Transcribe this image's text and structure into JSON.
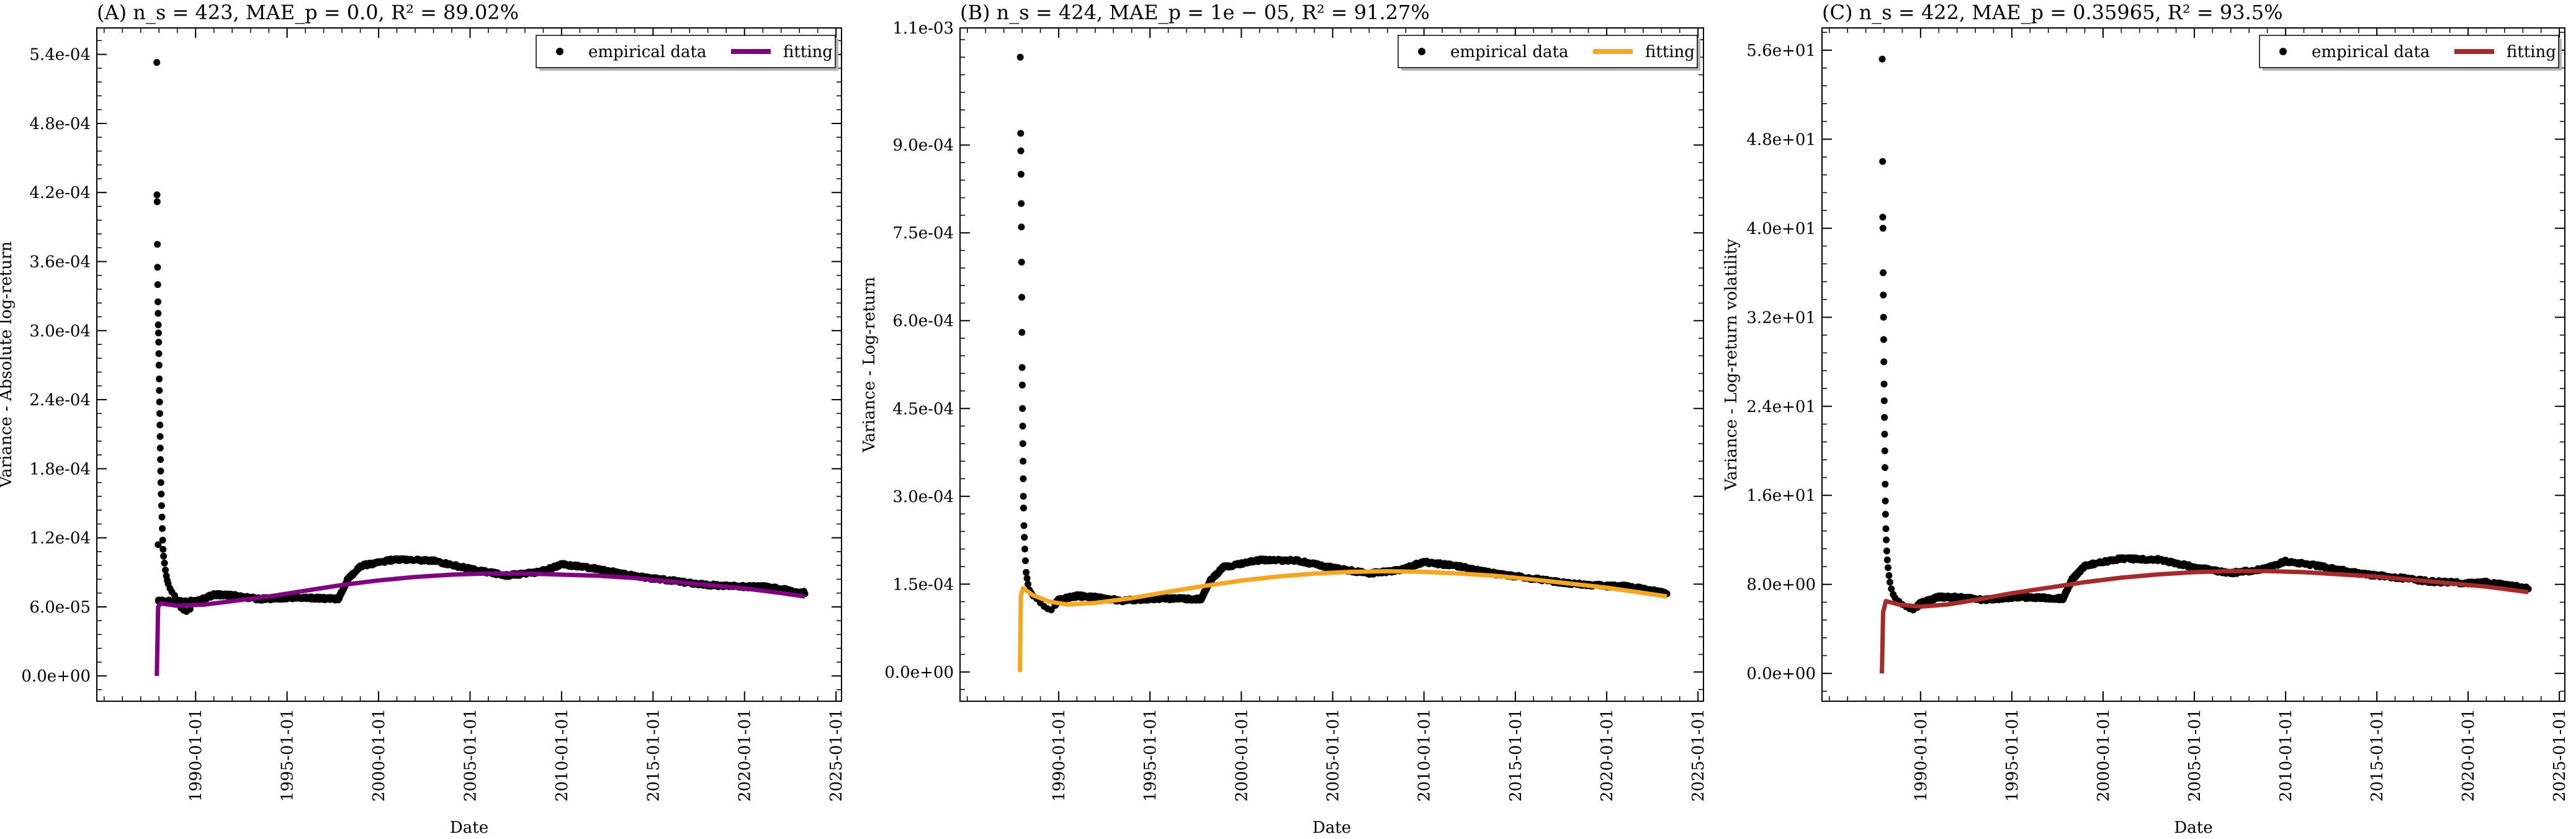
{
  "chart_data": [
    {
      "type": "scatter",
      "title": "(A) n_s = 423,  MAE_p = 0.0,  R² = 89.02%",
      "xlabel": "Date",
      "ylabel": "Variance - Absolute log-return",
      "xlim": [
        1984.6,
        2025.3
      ],
      "ylim": [
        -2.2e-05,
        0.000563
      ],
      "x_ticks": [
        "1990-01-01",
        "1995-01-01",
        "2000-01-01",
        "2005-01-01",
        "2010-01-01",
        "2015-01-01",
        "2020-01-01",
        "2025-01-01"
      ],
      "y_ticks": [
        {
          "v": 0,
          "label": "0.0e+00"
        },
        {
          "v": 6e-05,
          "label": "6.0e-05"
        },
        {
          "v": 0.00012,
          "label": "1.2e-04"
        },
        {
          "v": 0.00018,
          "label": "1.8e-04"
        },
        {
          "v": 0.00024,
          "label": "2.4e-04"
        },
        {
          "v": 0.0003,
          "label": "3.0e-04"
        },
        {
          "v": 0.00036,
          "label": "3.6e-04"
        },
        {
          "v": 0.00042,
          "label": "4.2e-04"
        },
        {
          "v": 0.00048,
          "label": "4.8e-04"
        },
        {
          "v": 0.00054,
          "label": "5.4e-04"
        }
      ],
      "fit_color": "#800080",
      "legend": {
        "points": "empirical data",
        "line": "fitting",
        "position": "top-right"
      },
      "series": [
        {
          "name": "empirical data",
          "points": [
            [
              1987.88,
              0.000533
            ],
            [
              1987.89,
              0.000418
            ],
            [
              1987.9,
              0.000412
            ],
            [
              1987.91,
              0.000375
            ],
            [
              1987.92,
              0.000355
            ],
            [
              1987.93,
              0.00034
            ],
            [
              1987.94,
              0.000325
            ],
            [
              1987.95,
              0.000315
            ],
            [
              1987.96,
              0.000305
            ],
            [
              1987.97,
              0.000298
            ],
            [
              1987.98,
              0.00029
            ],
            [
              1987.99,
              0.00028
            ],
            [
              1988.0,
              0.00027
            ],
            [
              1988.01,
              0.000258
            ],
            [
              1988.02,
              0.000248
            ],
            [
              1988.03,
              0.000238
            ],
            [
              1988.04,
              0.000228
            ],
            [
              1988.05,
              0.000218
            ],
            [
              1988.06,
              0.000208
            ],
            [
              1988.07,
              0.000198
            ],
            [
              1988.08,
              0.000188
            ],
            [
              1988.09,
              0.000178
            ],
            [
              1988.1,
              0.000168
            ],
            [
              1988.12,
              0.000158
            ],
            [
              1988.14,
              0.000148
            ],
            [
              1988.16,
              0.000138
            ],
            [
              1988.18,
              0.000128
            ],
            [
              1988.2,
              0.000118
            ],
            [
              1988.22,
              0.00011
            ],
            [
              1988.25,
              0.000104
            ],
            [
              1988.3,
              9.8e-05
            ],
            [
              1988.35,
              9.2e-05
            ],
            [
              1988.4,
              8.7e-05
            ],
            [
              1988.45,
              8.3e-05
            ],
            [
              1988.5,
              8e-05
            ],
            [
              1988.6,
              7.6e-05
            ],
            [
              1988.7,
              7.3e-05
            ],
            [
              1988.85,
              7e-05
            ],
            [
              1989.0,
              6.6e-05
            ],
            [
              1989.1,
              6.2e-05
            ],
            [
              1989.2,
              5.9e-05
            ],
            [
              1989.35,
              5.7e-05
            ],
            [
              1989.5,
              5.6e-05
            ],
            [
              1989.7,
              5.8e-05
            ],
            [
              1987.95,
              0.000114
            ],
            [
              1987.97,
              6.5e-05
            ]
          ]
        },
        {
          "name": "fitting",
          "points": [
            [
              1987.88,
              0.0
            ],
            [
              1987.95,
              6e-05
            ],
            [
              1988.1,
              6.3e-05
            ],
            [
              1989.0,
              6.1e-05
            ],
            [
              1990.5,
              6.2e-05
            ],
            [
              1992.0,
              6.5e-05
            ],
            [
              1994.0,
              6.9e-05
            ],
            [
              1996.0,
              7.4e-05
            ],
            [
              1998.0,
              7.9e-05
            ],
            [
              2000.0,
              8.3e-05
            ],
            [
              2002.0,
              8.6e-05
            ],
            [
              2004.0,
              8.8e-05
            ],
            [
              2006.0,
              8.9e-05
            ],
            [
              2008.0,
              8.9e-05
            ],
            [
              2010.0,
              8.8e-05
            ],
            [
              2012.0,
              8.7e-05
            ],
            [
              2014.0,
              8.5e-05
            ],
            [
              2016.0,
              8.2e-05
            ],
            [
              2018.0,
              7.9e-05
            ],
            [
              2020.0,
              7.6e-05
            ],
            [
              2022.0,
              7.2e-05
            ],
            [
              2023.3,
              6.9e-05
            ]
          ]
        }
      ]
    },
    {
      "type": "scatter",
      "title": "(B) n_s = 424,  MAE_p = 1e − 05,  R² = 91.27%",
      "xlabel": "Date",
      "ylabel": "Variance - Log-return",
      "xlim": [
        1984.6,
        2025.3
      ],
      "ylim": [
        -5e-05,
        0.0011
      ],
      "x_ticks": [
        "1990-01-01",
        "1995-01-01",
        "2000-01-01",
        "2005-01-01",
        "2010-01-01",
        "2015-01-01",
        "2020-01-01",
        "2025-01-01"
      ],
      "y_ticks": [
        {
          "v": 0,
          "label": "0.0e+00"
        },
        {
          "v": 0.00015,
          "label": "1.5e-04"
        },
        {
          "v": 0.0003,
          "label": "3.0e-04"
        },
        {
          "v": 0.00045,
          "label": "4.5e-04"
        },
        {
          "v": 0.0006,
          "label": "6.0e-04"
        },
        {
          "v": 0.00075,
          "label": "7.5e-04"
        },
        {
          "v": 0.0009,
          "label": "9.0e-04"
        },
        {
          "v": 0.0011,
          "label": "1.1e-03"
        }
      ],
      "fit_color": "#F5A623",
      "legend": {
        "points": "empirical data",
        "line": "fitting",
        "position": "top-right"
      },
      "series": [
        {
          "name": "empirical data",
          "points": [
            [
              1987.9,
              0.00105
            ],
            [
              1987.92,
              0.00092
            ],
            [
              1987.93,
              0.00089
            ],
            [
              1987.94,
              0.00085
            ],
            [
              1987.95,
              0.0008
            ],
            [
              1987.96,
              0.00076
            ],
            [
              1987.97,
              0.0007
            ],
            [
              1987.98,
              0.00064
            ],
            [
              1987.99,
              0.00058
            ],
            [
              1988.0,
              0.00052
            ],
            [
              1988.01,
              0.00049
            ],
            [
              1988.02,
              0.00045
            ],
            [
              1988.03,
              0.00042
            ],
            [
              1988.04,
              0.00039
            ],
            [
              1988.05,
              0.00036
            ],
            [
              1988.06,
              0.00033
            ],
            [
              1988.07,
              0.0003
            ],
            [
              1988.08,
              0.00028
            ],
            [
              1988.1,
              0.00025
            ],
            [
              1988.12,
              0.00023
            ],
            [
              1988.15,
              0.00021
            ],
            [
              1988.18,
              0.00019
            ],
            [
              1988.22,
              0.00017
            ],
            [
              1988.27,
              0.00016
            ],
            [
              1988.32,
              0.00015
            ],
            [
              1988.4,
              0.00014
            ],
            [
              1988.5,
              0.000135
            ],
            [
              1988.6,
              0.00013
            ],
            [
              1988.8,
              0.000125
            ],
            [
              1989.0,
              0.000118
            ],
            [
              1989.2,
              0.000112
            ],
            [
              1989.4,
              0.000108
            ],
            [
              1989.6,
              0.000106
            ],
            [
              1989.8,
              0.000115
            ]
          ]
        },
        {
          "name": "fitting",
          "points": [
            [
              1987.88,
              0.0
            ],
            [
              1987.93,
              0.00013
            ],
            [
              1988.05,
              0.000143
            ],
            [
              1988.6,
              0.000131
            ],
            [
              1989.5,
              0.00012
            ],
            [
              1990.5,
              0.000115
            ],
            [
              1992.0,
              0.000118
            ],
            [
              1994.0,
              0.000126
            ],
            [
              1996.0,
              0.000137
            ],
            [
              1998.0,
              0.000147
            ],
            [
              2000.0,
              0.000156
            ],
            [
              2002.0,
              0.000163
            ],
            [
              2004.0,
              0.000168
            ],
            [
              2006.0,
              0.000171
            ],
            [
              2008.0,
              0.000172
            ],
            [
              2010.0,
              0.000171
            ],
            [
              2012.0,
              0.000168
            ],
            [
              2014.0,
              0.000164
            ],
            [
              2016.0,
              0.000158
            ],
            [
              2018.0,
              0.000151
            ],
            [
              2020.0,
              0.000144
            ],
            [
              2022.0,
              0.000135
            ],
            [
              2023.3,
              0.000129
            ]
          ]
        }
      ]
    },
    {
      "type": "scatter",
      "title": "(C) n_s = 422,  MAE_p = 0.35965,  R² = 93.5%",
      "xlabel": "Date",
      "ylabel": "Variance - Log-return volatility",
      "xlim": [
        1984.6,
        2025.3
      ],
      "ylim": [
        -2.5,
        58.0
      ],
      "x_ticks": [
        "1990-01-01",
        "1995-01-01",
        "2000-01-01",
        "2005-01-01",
        "2010-01-01",
        "2015-01-01",
        "2020-01-01",
        "2025-01-01"
      ],
      "y_ticks": [
        {
          "v": 0,
          "label": "0.0e+00"
        },
        {
          "v": 8,
          "label": "8.0e+00"
        },
        {
          "v": 16,
          "label": "1.6e+01"
        },
        {
          "v": 24,
          "label": "2.4e+01"
        },
        {
          "v": 32,
          "label": "3.2e+01"
        },
        {
          "v": 40,
          "label": "4.0e+01"
        },
        {
          "v": 48,
          "label": "4.8e+01"
        },
        {
          "v": 56,
          "label": "5.6e+01"
        }
      ],
      "fit_color": "#A52A2A",
      "legend": {
        "points": "empirical data",
        "line": "fitting",
        "position": "top-right"
      },
      "series": [
        {
          "name": "empirical data",
          "points": [
            [
              1987.9,
              55.2
            ],
            [
              1987.92,
              46.0
            ],
            [
              1987.93,
              41.0
            ],
            [
              1987.94,
              40.0
            ],
            [
              1987.95,
              36.0
            ],
            [
              1987.96,
              34.0
            ],
            [
              1987.97,
              32.0
            ],
            [
              1987.98,
              30.0
            ],
            [
              1987.99,
              28.0
            ],
            [
              1988.0,
              26.0
            ],
            [
              1988.01,
              24.5
            ],
            [
              1988.02,
              23.0
            ],
            [
              1988.03,
              21.5
            ],
            [
              1988.04,
              20.0
            ],
            [
              1988.05,
              18.5
            ],
            [
              1988.06,
              17.0
            ],
            [
              1988.07,
              15.5
            ],
            [
              1988.08,
              14.3
            ],
            [
              1988.1,
              13.0
            ],
            [
              1988.12,
              12.0
            ],
            [
              1988.15,
              11.0
            ],
            [
              1988.18,
              10.2
            ],
            [
              1988.22,
              9.5
            ],
            [
              1988.27,
              8.8
            ],
            [
              1988.32,
              8.2
            ],
            [
              1988.4,
              7.6
            ],
            [
              1988.5,
              7.1
            ],
            [
              1988.6,
              6.8
            ],
            [
              1988.8,
              6.5
            ],
            [
              1989.0,
              6.2
            ],
            [
              1989.2,
              6.0
            ],
            [
              1989.4,
              5.8
            ],
            [
              1989.6,
              5.7
            ],
            [
              1989.8,
              6.0
            ]
          ]
        },
        {
          "name": "fitting",
          "points": [
            [
              1987.88,
              0.0
            ],
            [
              1987.95,
              5.5
            ],
            [
              1988.1,
              6.5
            ],
            [
              1988.8,
              6.2
            ],
            [
              1990.0,
              6.0
            ],
            [
              1991.5,
              6.2
            ],
            [
              1993.0,
              6.6
            ],
            [
              1995.0,
              7.2
            ],
            [
              1997.0,
              7.7
            ],
            [
              1999.0,
              8.2
            ],
            [
              2001.0,
              8.6
            ],
            [
              2003.0,
              8.9
            ],
            [
              2005.0,
              9.1
            ],
            [
              2007.0,
              9.2
            ],
            [
              2009.0,
              9.2
            ],
            [
              2011.0,
              9.1
            ],
            [
              2013.0,
              8.9
            ],
            [
              2015.0,
              8.7
            ],
            [
              2017.0,
              8.4
            ],
            [
              2019.0,
              8.1
            ],
            [
              2021.0,
              7.8
            ],
            [
              2023.3,
              7.3
            ]
          ]
        }
      ]
    }
  ]
}
